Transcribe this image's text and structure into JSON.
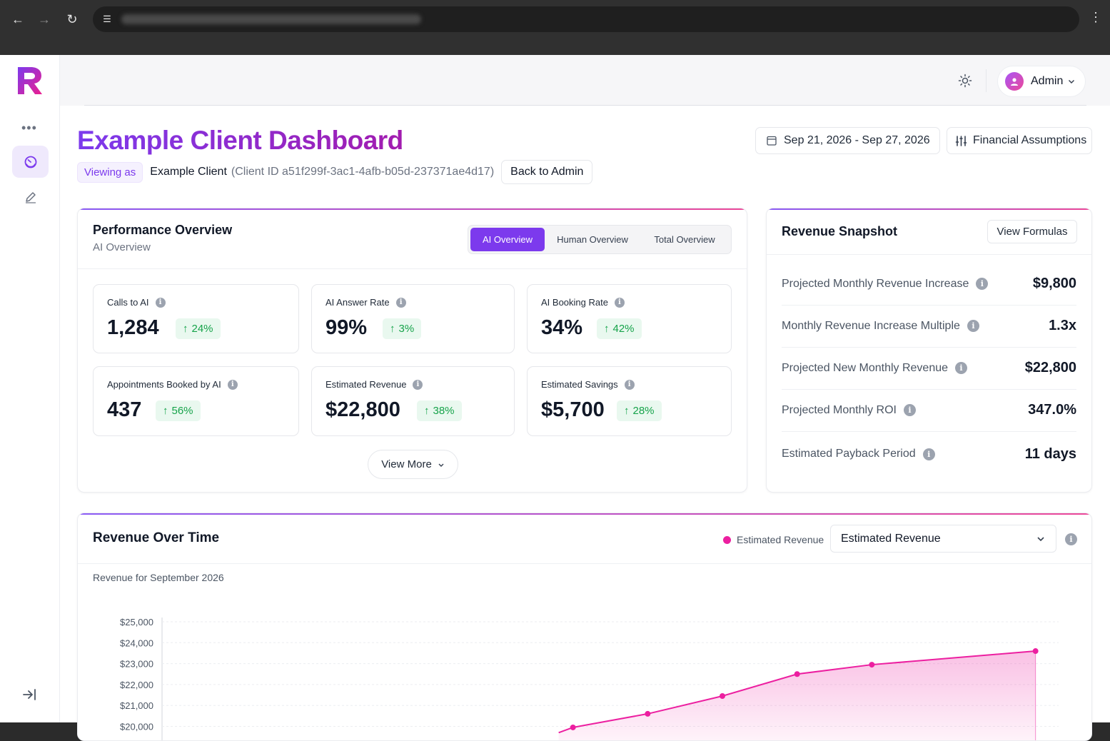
{
  "browser": {
    "url": ""
  },
  "topbar": {
    "user_label": "Admin"
  },
  "page": {
    "title": "Example Client Dashboard",
    "viewing_as": "Viewing as",
    "client_name": "Example Client",
    "client_id": "(Client ID a51f299f-3ac1-4afb-b05d-237371ae4d17)",
    "back_label": "Back to Admin",
    "date_range": "Sep 21, 2026 - Sep 27, 2026",
    "financial_label": "Financial Assumptions"
  },
  "performance": {
    "title": "Performance Overview",
    "subtitle": "AI Overview",
    "tabs": [
      "AI Overview",
      "Human Overview",
      "Total Overview"
    ],
    "active_tab": "AI Overview",
    "metrics": [
      {
        "label": "Calls to AI",
        "value": "1,284",
        "delta": "24%"
      },
      {
        "label": "AI Answer Rate",
        "value": "99%",
        "delta": "3%"
      },
      {
        "label": "AI Booking Rate",
        "value": "34%",
        "delta": "42%"
      },
      {
        "label": "Appointments Booked by AI",
        "value": "437",
        "delta": "56%"
      },
      {
        "label": "Estimated Revenue",
        "value": "$22,800",
        "delta": "38%"
      },
      {
        "label": "Estimated Savings",
        "value": "$5,700",
        "delta": "28%"
      }
    ],
    "view_more": "View More"
  },
  "revenue_snapshot": {
    "title": "Revenue Snapshot",
    "formulas_label": "View Formulas",
    "rows": [
      {
        "label": "Projected Monthly Revenue Increase",
        "value": "$9,800"
      },
      {
        "label": "Monthly Revenue Increase Multiple",
        "value": "1.3x"
      },
      {
        "label": "Projected New Monthly Revenue",
        "value": "$22,800"
      },
      {
        "label": "Projected Monthly ROI",
        "value": "347.0%"
      },
      {
        "label": "Estimated Payback Period",
        "value": "11 days"
      }
    ]
  },
  "revenue_over_time": {
    "title": "Revenue Over Time",
    "legend_label": "Estimated Revenue",
    "select_value": "Estimated Revenue",
    "chart_title": "Revenue for September 2026"
  },
  "colors": {
    "accent": "#7c3aed",
    "series": "#ec1fa0",
    "delta_positive": "#16a34a"
  },
  "chart_data": {
    "type": "area",
    "title": "Revenue for September 2026",
    "xlabel": "",
    "ylabel": "",
    "y_ticks": [
      "$25,000",
      "$24,000",
      "$23,000",
      "$22,000",
      "$21,000",
      "$20,000"
    ],
    "ylim": [
      19000,
      25000
    ],
    "series": [
      {
        "name": "Estimated Revenue",
        "x": [
          1,
          2,
          3,
          4,
          5,
          6,
          7,
          8,
          9,
          10,
          11,
          12
        ],
        "values": [
          null,
          null,
          null,
          null,
          null,
          19950,
          20600,
          21450,
          22500,
          22950,
          null,
          23600
        ]
      }
    ],
    "grid": true,
    "legend": "top-right"
  }
}
